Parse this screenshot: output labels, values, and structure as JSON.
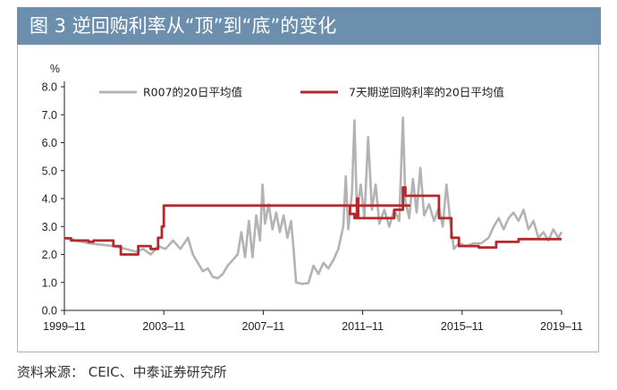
{
  "title": "图 3  逆回购利率从“顶”到“底”的变化",
  "source": "资料来源：  CEIC、中泰证券研究所",
  "colors": {
    "banner": "#6d8fae",
    "r007": "#b3b3b3",
    "reverse_repo": "#b5292c"
  },
  "chart_data": {
    "type": "line",
    "ylabel": "%",
    "ylim": [
      0,
      8
    ],
    "yticks": [
      "0.0",
      "1.0",
      "2.0",
      "3.0",
      "4.0",
      "5.0",
      "6.0",
      "7.0",
      "8.0"
    ],
    "xticks": [
      {
        "label": "1999–11",
        "x": 1999.83
      },
      {
        "label": "2003–11",
        "x": 2003.83
      },
      {
        "label": "2007–11",
        "x": 2007.83
      },
      {
        "label": "2011–11",
        "x": 2011.83
      },
      {
        "label": "2015–11",
        "x": 2015.83
      },
      {
        "label": "2019–11",
        "x": 2019.83
      }
    ],
    "xlim": [
      1999.83,
      2019.83
    ],
    "legend_position": "top",
    "series": [
      {
        "name": "R007的20日平均值",
        "color": "#b3b3b3",
        "points": [
          [
            1999.83,
            2.6
          ],
          [
            2000.3,
            2.5
          ],
          [
            2000.8,
            2.4
          ],
          [
            2001.3,
            2.35
          ],
          [
            2001.8,
            2.3
          ],
          [
            2002.3,
            2.2
          ],
          [
            2002.7,
            2.1
          ],
          [
            2003.0,
            2.2
          ],
          [
            2003.3,
            2.0
          ],
          [
            2003.6,
            2.3
          ],
          [
            2003.9,
            2.2
          ],
          [
            2004.2,
            2.5
          ],
          [
            2004.5,
            2.2
          ],
          [
            2004.8,
            2.6
          ],
          [
            2005.0,
            2.0
          ],
          [
            2005.2,
            1.7
          ],
          [
            2005.4,
            1.4
          ],
          [
            2005.6,
            1.5
          ],
          [
            2005.8,
            1.2
          ],
          [
            2006.0,
            1.15
          ],
          [
            2006.2,
            1.3
          ],
          [
            2006.4,
            1.6
          ],
          [
            2006.6,
            1.8
          ],
          [
            2006.8,
            2.0
          ],
          [
            2006.95,
            2.8
          ],
          [
            2007.1,
            1.9
          ],
          [
            2007.25,
            3.2
          ],
          [
            2007.4,
            1.9
          ],
          [
            2007.55,
            3.4
          ],
          [
            2007.7,
            2.5
          ],
          [
            2007.8,
            4.5
          ],
          [
            2007.9,
            3.1
          ],
          [
            2008.05,
            3.8
          ],
          [
            2008.2,
            2.9
          ],
          [
            2008.35,
            3.5
          ],
          [
            2008.5,
            2.8
          ],
          [
            2008.65,
            3.4
          ],
          [
            2008.8,
            2.6
          ],
          [
            2008.95,
            3.2
          ],
          [
            2009.05,
            2.2
          ],
          [
            2009.15,
            1.0
          ],
          [
            2009.4,
            0.95
          ],
          [
            2009.65,
            0.98
          ],
          [
            2009.85,
            1.6
          ],
          [
            2010.05,
            1.3
          ],
          [
            2010.25,
            1.7
          ],
          [
            2010.45,
            1.5
          ],
          [
            2010.65,
            1.8
          ],
          [
            2010.85,
            2.2
          ],
          [
            2011.05,
            3.0
          ],
          [
            2011.15,
            4.8
          ],
          [
            2011.25,
            2.9
          ],
          [
            2011.4,
            4.2
          ],
          [
            2011.5,
            6.8
          ],
          [
            2011.6,
            3.5
          ],
          [
            2011.75,
            4.5
          ],
          [
            2011.9,
            3.3
          ],
          [
            2012.05,
            6.2
          ],
          [
            2012.2,
            3.6
          ],
          [
            2012.35,
            4.5
          ],
          [
            2012.5,
            3.1
          ],
          [
            2012.7,
            3.6
          ],
          [
            2012.9,
            3.0
          ],
          [
            2013.1,
            3.6
          ],
          [
            2013.3,
            3.2
          ],
          [
            2013.45,
            6.9
          ],
          [
            2013.55,
            3.9
          ],
          [
            2013.7,
            3.3
          ],
          [
            2013.85,
            4.7
          ],
          [
            2014.0,
            3.5
          ],
          [
            2014.15,
            5.1
          ],
          [
            2014.3,
            3.4
          ],
          [
            2014.5,
            3.8
          ],
          [
            2014.7,
            3.2
          ],
          [
            2014.9,
            3.7
          ],
          [
            2015.05,
            3.0
          ],
          [
            2015.2,
            4.5
          ],
          [
            2015.35,
            3.2
          ],
          [
            2015.5,
            2.2
          ],
          [
            2015.7,
            2.4
          ],
          [
            2016.0,
            2.3
          ],
          [
            2016.3,
            2.4
          ],
          [
            2016.6,
            2.4
          ],
          [
            2016.9,
            2.6
          ],
          [
            2017.1,
            3.0
          ],
          [
            2017.3,
            3.3
          ],
          [
            2017.5,
            2.9
          ],
          [
            2017.7,
            3.3
          ],
          [
            2017.9,
            3.5
          ],
          [
            2018.1,
            3.2
          ],
          [
            2018.3,
            3.6
          ],
          [
            2018.5,
            2.9
          ],
          [
            2018.7,
            3.2
          ],
          [
            2018.9,
            2.6
          ],
          [
            2019.1,
            2.8
          ],
          [
            2019.3,
            2.5
          ],
          [
            2019.5,
            2.9
          ],
          [
            2019.7,
            2.6
          ],
          [
            2019.83,
            2.8
          ]
        ]
      },
      {
        "name": "7天期逆回购利率的20日平均值",
        "color": "#b5292c",
        "points": [
          [
            1999.83,
            2.58
          ],
          [
            2000.1,
            2.58
          ],
          [
            2000.1,
            2.5
          ],
          [
            2000.8,
            2.5
          ],
          [
            2000.8,
            2.45
          ],
          [
            2001.0,
            2.45
          ],
          [
            2001.0,
            2.5
          ],
          [
            2001.8,
            2.5
          ],
          [
            2001.8,
            2.3
          ],
          [
            2002.1,
            2.3
          ],
          [
            2002.1,
            2.0
          ],
          [
            2002.8,
            2.0
          ],
          [
            2002.8,
            2.3
          ],
          [
            2003.3,
            2.3
          ],
          [
            2003.3,
            2.2
          ],
          [
            2003.6,
            2.2
          ],
          [
            2003.6,
            2.6
          ],
          [
            2003.75,
            2.6
          ],
          [
            2003.75,
            3.0
          ],
          [
            2003.83,
            3.0
          ],
          [
            2003.83,
            3.75
          ],
          [
            2013.7,
            3.75
          ],
          [
            2011.32,
            3.75
          ],
          [
            2011.32,
            3.45
          ],
          [
            2011.5,
            3.45
          ],
          [
            2011.5,
            3.3
          ],
          [
            2011.6,
            3.3
          ],
          [
            2011.6,
            4.0
          ],
          [
            2011.65,
            4.0
          ],
          [
            2011.65,
            3.3
          ],
          [
            2013.1,
            3.3
          ],
          [
            2013.1,
            3.6
          ],
          [
            2013.45,
            3.6
          ],
          [
            2013.45,
            4.4
          ],
          [
            2013.55,
            4.4
          ],
          [
            2013.55,
            4.1
          ],
          [
            2014.9,
            4.1
          ],
          [
            2014.9,
            3.3
          ],
          [
            2015.4,
            3.3
          ],
          [
            2015.4,
            2.6
          ],
          [
            2015.7,
            2.6
          ],
          [
            2015.7,
            2.3
          ],
          [
            2016.5,
            2.3
          ],
          [
            2016.5,
            2.25
          ],
          [
            2017.2,
            2.25
          ],
          [
            2017.2,
            2.45
          ],
          [
            2018.1,
            2.45
          ],
          [
            2018.1,
            2.55
          ],
          [
            2019.83,
            2.55
          ]
        ]
      }
    ]
  }
}
